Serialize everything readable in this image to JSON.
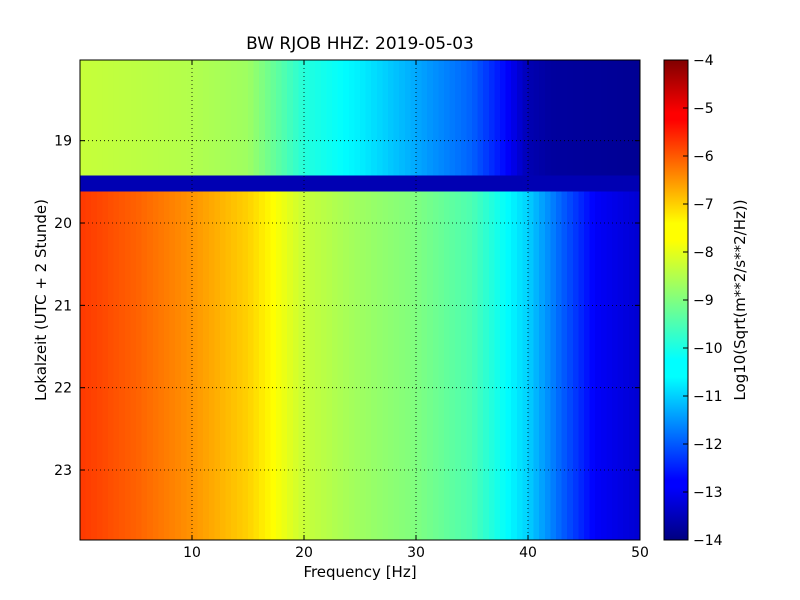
{
  "chart_data": {
    "type": "heatmap",
    "title": "BW RJOB HHZ: 2019-05-03",
    "xlabel": "Frequency [Hz]",
    "ylabel": "Lokalzeit (UTC + 2 Stunde)",
    "xlim": [
      0,
      50
    ],
    "ylim": [
      18.02,
      23.85
    ],
    "y_inverted": true,
    "grid": true,
    "x_ticks": [
      10,
      20,
      30,
      40,
      50
    ],
    "y_ticks": [
      19,
      20,
      21,
      22,
      23
    ],
    "colormap": "jet",
    "colorbar": {
      "label": "Log10(Sqrt(m**2/s**2/Hz))",
      "range": [
        -14,
        -4
      ],
      "ticks": [
        -4,
        -5,
        -6,
        -7,
        -8,
        -9,
        -10,
        -11,
        -12,
        -13,
        -14
      ]
    },
    "segments": [
      {
        "time_range": [
          18.02,
          19.42
        ],
        "psd_profile": [
          {
            "hz": 0,
            "value": -8.3
          },
          {
            "hz": 5,
            "value": -8.4
          },
          {
            "hz": 10,
            "value": -8.5
          },
          {
            "hz": 15,
            "value": -8.7
          },
          {
            "hz": 20,
            "value": -9.9
          },
          {
            "hz": 25,
            "value": -10.4
          },
          {
            "hz": 30,
            "value": -11.1
          },
          {
            "hz": 35,
            "value": -11.8
          },
          {
            "hz": 38,
            "value": -12.7
          },
          {
            "hz": 40,
            "value": -13.5
          },
          {
            "hz": 42,
            "value": -13.7
          },
          {
            "hz": 50,
            "value": -13.8
          }
        ]
      },
      {
        "time_range": [
          19.42,
          19.62
        ],
        "psd_profile": [
          {
            "hz": 0,
            "value": -13.5
          },
          {
            "hz": 50,
            "value": -13.5
          }
        ]
      },
      {
        "time_range": [
          19.62,
          23.85
        ],
        "psd_profile": [
          {
            "hz": 0,
            "value": -5.8
          },
          {
            "hz": 5,
            "value": -6.2
          },
          {
            "hz": 10,
            "value": -6.7
          },
          {
            "hz": 15,
            "value": -7.3
          },
          {
            "hz": 20,
            "value": -8.3
          },
          {
            "hz": 25,
            "value": -8.7
          },
          {
            "hz": 30,
            "value": -9.0
          },
          {
            "hz": 35,
            "value": -9.5
          },
          {
            "hz": 40,
            "value": -10.7
          },
          {
            "hz": 43,
            "value": -11.8
          },
          {
            "hz": 46,
            "value": -12.8
          },
          {
            "hz": 50,
            "value": -13.2
          }
        ]
      }
    ]
  }
}
